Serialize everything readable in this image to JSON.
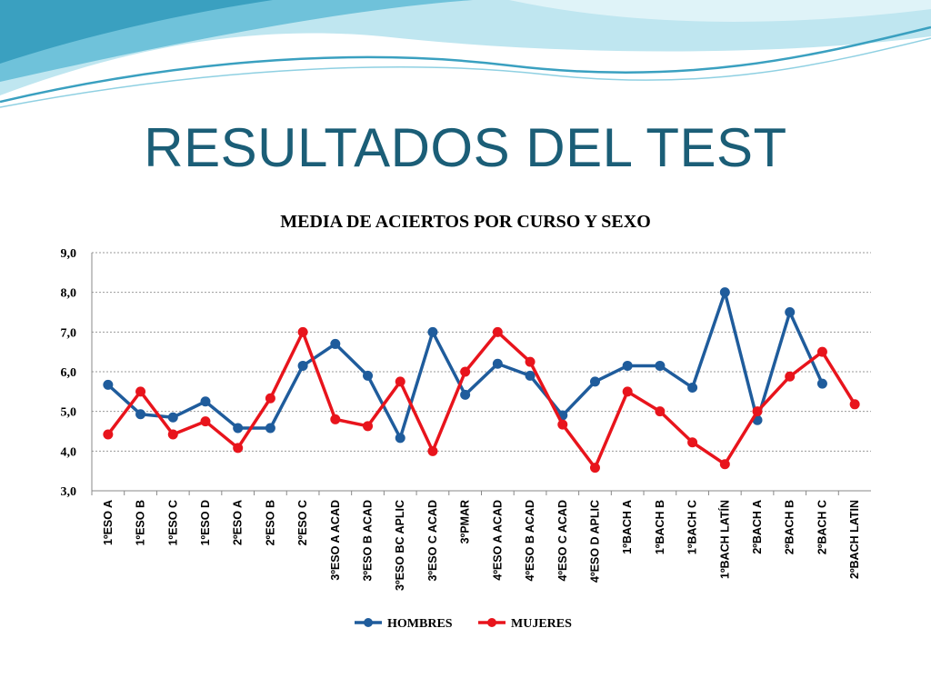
{
  "slide": {
    "title": "RESULTADOS DEL TEST"
  },
  "colors": {
    "title": "#1b5e77",
    "hombres": "#1f5c9c",
    "mujeres": "#e8141c",
    "swoosh_dark": "#3aa0c0",
    "swoosh_light": "#a8dbe8"
  },
  "chart_data": {
    "type": "line",
    "title": "MEDIA DE ACIERTOS POR CURSO Y SEXO",
    "xlabel": "",
    "ylabel": "",
    "ylim": [
      3,
      9
    ],
    "yticks": [
      "3,0",
      "4,0",
      "5,0",
      "6,0",
      "7,0",
      "8,0",
      "9,0"
    ],
    "grid": true,
    "legend": "bottom",
    "categories": [
      "1ºESO A",
      "1ºESO B",
      "1ºESO C",
      "1ºESO D",
      "2ºESO A",
      "2ºESO B",
      "2ºESO C",
      "3ºESO A ACAD",
      "3ºESO B ACAD",
      "3ºESO BC APLIC",
      "3ºESO C ACAD",
      "3ºPMAR",
      "4ºESO A ACAD",
      "4ºESO B ACAD",
      "4ºESO C ACAD",
      "4ºESO D APLIC",
      "1ºBACH A",
      "1ºBACH B",
      "1ºBACH C",
      "1ºBACH LATÍN",
      "2ºBACH A",
      "2ºBACH B",
      "2ºBACH C",
      "2ºBACH LATIN"
    ],
    "series": [
      {
        "name": "HOMBRES",
        "color": "#1f5c9c",
        "values": [
          5.67,
          4.93,
          4.85,
          5.25,
          4.58,
          4.58,
          6.15,
          6.7,
          5.9,
          4.33,
          7.0,
          5.42,
          6.2,
          5.9,
          4.9,
          5.75,
          6.15,
          6.15,
          5.6,
          8.0,
          4.78,
          7.5,
          5.7,
          null
        ]
      },
      {
        "name": "MUJERES",
        "color": "#e8141c",
        "values": [
          4.42,
          5.5,
          4.42,
          4.75,
          4.08,
          5.33,
          7.0,
          4.8,
          4.63,
          5.75,
          4.0,
          6.0,
          7.0,
          6.25,
          4.67,
          3.58,
          5.5,
          5.0,
          4.22,
          3.67,
          5.0,
          5.88,
          6.5,
          5.18
        ]
      }
    ]
  }
}
